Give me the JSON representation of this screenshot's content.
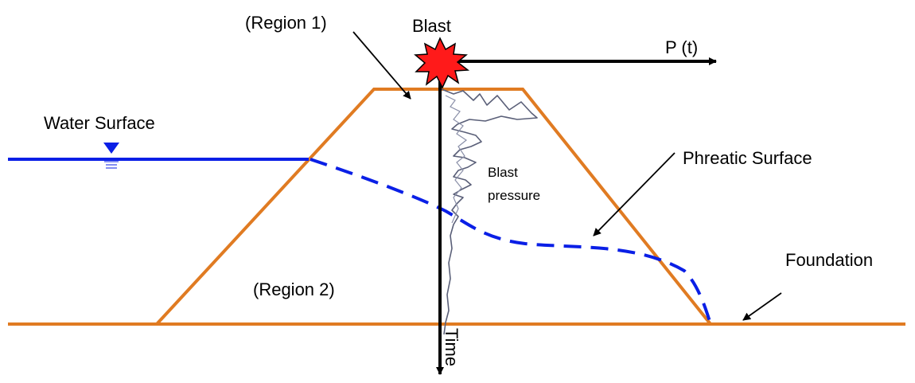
{
  "labels": {
    "region_1": "(Region 1)",
    "blast": "Blast",
    "p_t": "P (t)",
    "water_surface": "Water Surface",
    "phreatic_surface": "Phreatic Surface",
    "blast_pressure_line1": "Blast",
    "blast_pressure_line2": "pressure",
    "foundation": "Foundation",
    "region_2": "(Region 2)",
    "time": "Time"
  },
  "colors": {
    "dam_outline": "#e07b22",
    "water": "#0a1fe6",
    "arrow": "#000000",
    "blast_fill": "#ff1a1a",
    "blast_stroke": "#000000",
    "pressure_trace": "#5a5f78"
  },
  "icons": {
    "water_level_marker": "inverted-triangle-icon",
    "blast_burst": "starburst-icon"
  }
}
